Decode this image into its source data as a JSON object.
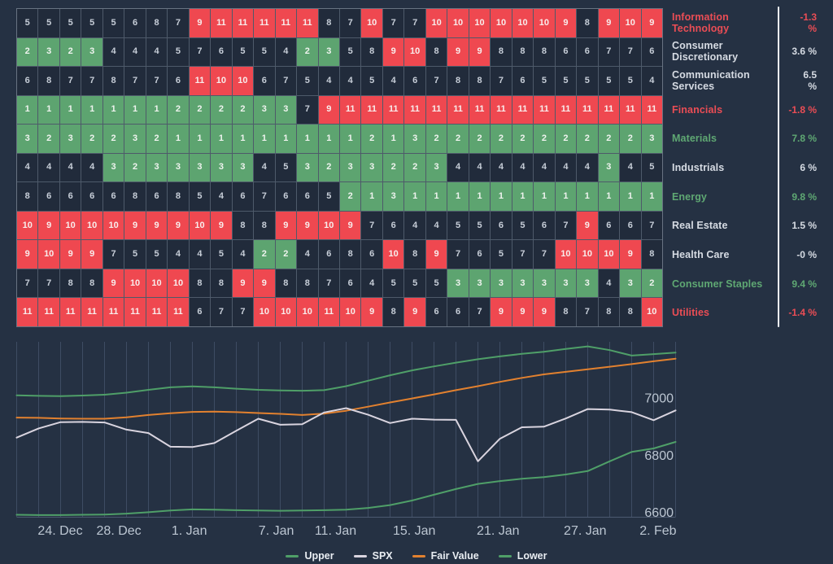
{
  "colors": {
    "background": "#253143",
    "cell_dark": "#212b3b",
    "cell_green": "#5da470",
    "cell_red": "#ef4850",
    "grid_line": "#45536b",
    "axis_line": "#4d5a70",
    "axis_label": "#bcc6d2",
    "legend_text": "#e9edf2",
    "separator": "#f2f5f8",
    "series_upper": "#4f9f68",
    "series_spx": "#d9d4df",
    "series_fair_value": "#e2812f",
    "series_lower": "#4f9f68"
  },
  "chart_data": [
    {
      "type": "heatmap",
      "columns": 30,
      "green_max": 3,
      "red_min": 9,
      "rows": [
        {
          "sector": "Information Technology",
          "change": "-1.3 %",
          "tone": "red",
          "values": [
            5,
            5,
            5,
            5,
            5,
            6,
            8,
            7,
            9,
            11,
            11,
            11,
            11,
            11,
            8,
            7,
            10,
            7,
            7,
            10,
            10,
            10,
            10,
            10,
            10,
            9,
            8,
            9,
            10,
            9
          ]
        },
        {
          "sector": "Consumer Discretionary",
          "change": "3.6 %",
          "tone": "white",
          "values": [
            2,
            3,
            2,
            3,
            4,
            4,
            4,
            5,
            7,
            6,
            5,
            5,
            4,
            2,
            3,
            5,
            8,
            9,
            10,
            8,
            9,
            9,
            8,
            8,
            8,
            6,
            6,
            7,
            7,
            6
          ]
        },
        {
          "sector": "Communication Services",
          "change": "6.5 %",
          "tone": "white",
          "values": [
            6,
            8,
            7,
            7,
            8,
            7,
            7,
            6,
            11,
            10,
            10,
            6,
            7,
            5,
            4,
            4,
            5,
            4,
            6,
            7,
            8,
            8,
            7,
            6,
            5,
            5,
            5,
            5,
            5,
            4
          ]
        },
        {
          "sector": "Financials",
          "change": "-1.8 %",
          "tone": "red",
          "values": [
            1,
            1,
            1,
            1,
            1,
            1,
            1,
            2,
            2,
            2,
            2,
            3,
            3,
            7,
            9,
            11,
            11,
            11,
            11,
            11,
            11,
            11,
            11,
            11,
            11,
            11,
            11,
            11,
            11,
            11
          ]
        },
        {
          "sector": "Materials",
          "change": "7.8 %",
          "tone": "green",
          "values": [
            3,
            2,
            3,
            2,
            2,
            3,
            2,
            1,
            1,
            1,
            1,
            1,
            1,
            1,
            1,
            1,
            2,
            1,
            3,
            2,
            2,
            2,
            2,
            2,
            2,
            2,
            2,
            2,
            2,
            3
          ]
        },
        {
          "sector": "Industrials",
          "change": "6 %",
          "tone": "white",
          "values": [
            4,
            4,
            4,
            4,
            3,
            2,
            3,
            3,
            3,
            3,
            3,
            4,
            5,
            3,
            2,
            3,
            3,
            2,
            2,
            3,
            4,
            4,
            4,
            4,
            4,
            4,
            4,
            3,
            4,
            5
          ]
        },
        {
          "sector": "Energy",
          "change": "9.8 %",
          "tone": "green",
          "values": [
            8,
            6,
            6,
            6,
            6,
            8,
            6,
            8,
            5,
            4,
            6,
            7,
            6,
            6,
            5,
            2,
            1,
            3,
            1,
            1,
            1,
            1,
            1,
            1,
            1,
            1,
            1,
            1,
            1,
            1
          ]
        },
        {
          "sector": "Real Estate",
          "change": "1.5 %",
          "tone": "white",
          "values": [
            10,
            9,
            10,
            10,
            10,
            9,
            9,
            9,
            10,
            9,
            8,
            8,
            9,
            9,
            10,
            9,
            7,
            6,
            4,
            4,
            5,
            5,
            6,
            5,
            6,
            7,
            9,
            6,
            6,
            7
          ]
        },
        {
          "sector": "Health Care",
          "change": "-0 %",
          "tone": "white",
          "values": [
            9,
            10,
            9,
            9,
            7,
            5,
            5,
            4,
            4,
            5,
            4,
            2,
            2,
            4,
            6,
            8,
            6,
            10,
            8,
            9,
            7,
            6,
            5,
            7,
            7,
            10,
            10,
            10,
            9,
            8
          ]
        },
        {
          "sector": "Consumer Staples",
          "change": "9.4 %",
          "tone": "green",
          "values": [
            7,
            7,
            8,
            8,
            9,
            10,
            10,
            10,
            8,
            8,
            9,
            9,
            8,
            8,
            7,
            6,
            4,
            5,
            5,
            5,
            3,
            3,
            3,
            3,
            3,
            3,
            3,
            4,
            3,
            2
          ]
        },
        {
          "sector": "Utilities",
          "change": "-1.4 %",
          "tone": "red",
          "values": [
            11,
            11,
            11,
            11,
            11,
            11,
            11,
            11,
            6,
            7,
            7,
            10,
            10,
            10,
            11,
            10,
            9,
            8,
            9,
            6,
            6,
            7,
            9,
            9,
            9,
            8,
            7,
            8,
            8,
            10
          ]
        }
      ]
    },
    {
      "type": "line",
      "xlim": [
        0,
        30
      ],
      "ylim": [
        6583,
        7195
      ],
      "grid": "vertical-only",
      "legend_position": "bottom-center",
      "x_ticks": [
        {
          "label": "24. Dec",
          "pos": 1.98
        },
        {
          "label": "28. Dec",
          "pos": 4.65
        },
        {
          "label": "1. Jan",
          "pos": 7.86
        },
        {
          "label": "7. Jan",
          "pos": 11.82
        },
        {
          "label": "11. Jan",
          "pos": 14.52
        },
        {
          "label": "15. Jan",
          "pos": 18.1
        },
        {
          "label": "21. Jan",
          "pos": 21.92
        },
        {
          "label": "27. Jan",
          "pos": 25.88
        },
        {
          "label": "2. Feb",
          "pos": 29.2
        }
      ],
      "y_ticks": [
        {
          "label": "7000",
          "value": 7000
        },
        {
          "label": "6800",
          "value": 6800
        },
        {
          "label": "6600",
          "value": 6600
        }
      ],
      "series": [
        {
          "name": "Upper",
          "color": "#4f9f68",
          "values": [
            7008,
            7006,
            7005,
            7007,
            7010,
            7017,
            7027,
            7036,
            7039,
            7036,
            7031,
            7027,
            7025,
            7024,
            7026,
            7040,
            7059,
            7078,
            7095,
            7109,
            7122,
            7134,
            7144,
            7153,
            7160,
            7170,
            7179,
            7166,
            7147,
            7152,
            7157
          ]
        },
        {
          "name": "SPX",
          "color": "#d9d4df",
          "values": [
            6860,
            6892,
            6914,
            6915,
            6913,
            6888,
            6876,
            6828,
            6827,
            6841,
            6884,
            6926,
            6905,
            6907,
            6948,
            6963,
            6940,
            6911,
            6926,
            6923,
            6922,
            6777,
            6856,
            6896,
            6898,
            6927,
            6960,
            6958,
            6949,
            6921,
            6955
          ]
        },
        {
          "name": "Fair Value",
          "color": "#e2812f",
          "values": [
            6930,
            6929,
            6927,
            6926,
            6926,
            6931,
            6939,
            6945,
            6950,
            6951,
            6949,
            6946,
            6943,
            6939,
            6944,
            6954,
            6968,
            6983,
            6997,
            7011,
            7026,
            7040,
            7055,
            7069,
            7081,
            7090,
            7099,
            7108,
            7117,
            7127,
            7136
          ]
        },
        {
          "name": "Lower",
          "color": "#4f9f68",
          "values": [
            6590,
            6589,
            6589,
            6590,
            6591,
            6594,
            6599,
            6605,
            6609,
            6608,
            6606,
            6605,
            6604,
            6605,
            6606,
            6608,
            6614,
            6624,
            6640,
            6660,
            6680,
            6698,
            6708,
            6716,
            6722,
            6731,
            6743,
            6777,
            6810,
            6822,
            6845
          ]
        }
      ]
    }
  ]
}
